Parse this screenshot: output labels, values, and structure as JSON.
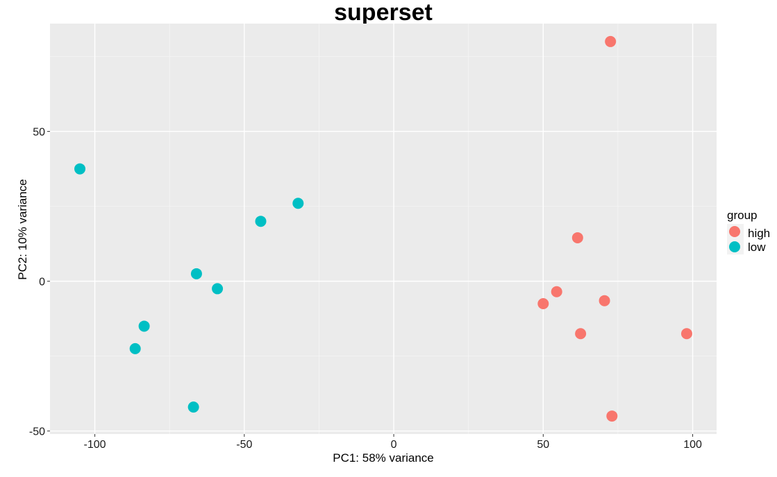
{
  "chart_data": {
    "type": "scatter",
    "title": "superset",
    "xlabel": "PC1: 58% variance",
    "ylabel": "PC2: 10% variance",
    "xlim": [
      -115,
      108
    ],
    "ylim": [
      -51,
      86
    ],
    "x_ticks": [
      -100,
      -50,
      0,
      50,
      100
    ],
    "x_tick_labels": [
      "-100",
      "-50",
      "0",
      "50",
      "100"
    ],
    "y_ticks": [
      -50,
      0,
      50
    ],
    "y_tick_labels": [
      "-50",
      "0",
      "50"
    ],
    "background": "#EBEBEB",
    "grid": true,
    "legend": {
      "title": "group",
      "position": "right",
      "entries": [
        {
          "label": "high",
          "color": "#F8766D"
        },
        {
          "label": "low",
          "color": "#00BFC4"
        }
      ]
    },
    "series": [
      {
        "name": "high",
        "color": "#F8766D",
        "points": [
          {
            "x": 72.5,
            "y": 80
          },
          {
            "x": 61.5,
            "y": 14.5
          },
          {
            "x": 54.5,
            "y": -3.5
          },
          {
            "x": 50.0,
            "y": -7.5
          },
          {
            "x": 70.5,
            "y": -6.5
          },
          {
            "x": 62.5,
            "y": -17.5
          },
          {
            "x": 98.0,
            "y": -17.5
          },
          {
            "x": 73.0,
            "y": -45
          }
        ]
      },
      {
        "name": "low",
        "color": "#00BFC4",
        "points": [
          {
            "x": -105.0,
            "y": 37.5
          },
          {
            "x": -32.0,
            "y": 26.0
          },
          {
            "x": -44.5,
            "y": 20.0
          },
          {
            "x": -66.0,
            "y": 2.5
          },
          {
            "x": -59.0,
            "y": -2.5
          },
          {
            "x": -83.5,
            "y": -15.0
          },
          {
            "x": -86.5,
            "y": -22.5
          },
          {
            "x": -67.0,
            "y": -42.0
          }
        ]
      }
    ]
  }
}
